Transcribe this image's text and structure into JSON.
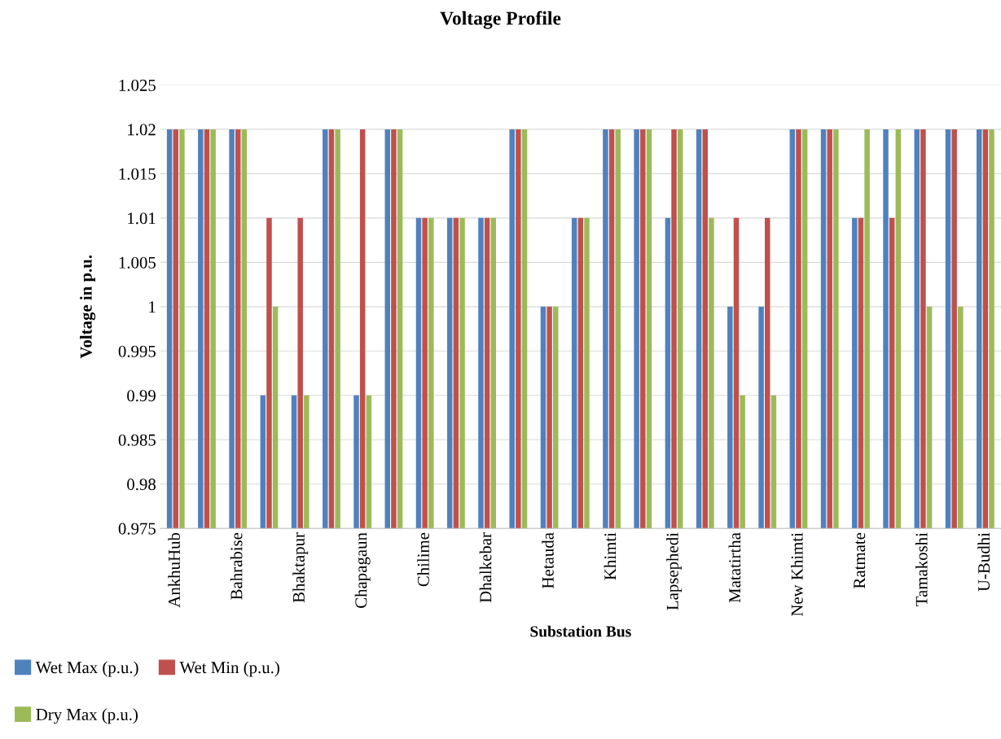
{
  "chart_data": {
    "type": "bar",
    "title": "Voltage Profile",
    "xlabel": "Substation Bus",
    "ylabel": "Voltage in p.u.",
    "categories": [
      "AnkhuHub",
      null,
      "Bahrabise",
      null,
      "Bhaktapur",
      null,
      "Chapagaun",
      null,
      "Chilime",
      null,
      "Dhalkebar",
      null,
      "Hetauda",
      null,
      "Khimti",
      null,
      "Lapsephedi",
      null,
      "Matatirtha",
      null,
      "New Khimti",
      null,
      "Ratmate",
      null,
      "Tamakoshi",
      null,
      "U-Budhi"
    ],
    "series": [
      {
        "name": "Wet Max (p.u.)",
        "color": "#4f81bd",
        "values": [
          1.02,
          1.02,
          1.02,
          0.99,
          0.99,
          1.02,
          0.99,
          1.02,
          1.01,
          1.01,
          1.01,
          1.02,
          1.0,
          1.01,
          1.02,
          1.02,
          1.01,
          1.02,
          1.0,
          1.0,
          1.02,
          1.02,
          1.01,
          1.02,
          1.02,
          1.02,
          1.02
        ]
      },
      {
        "name": "Wet Min (p.u.)",
        "color": "#c0504d",
        "values": [
          1.02,
          1.02,
          1.02,
          1.01,
          1.01,
          1.02,
          1.02,
          1.02,
          1.01,
          1.01,
          1.01,
          1.02,
          1.0,
          1.01,
          1.02,
          1.02,
          1.02,
          1.02,
          1.01,
          1.01,
          1.02,
          1.02,
          1.01,
          1.01,
          1.02,
          1.02,
          1.02
        ]
      },
      {
        "name": "Dry Max (p.u.)",
        "color": "#9bbb59",
        "values": [
          1.02,
          1.02,
          1.02,
          1.0,
          0.99,
          1.02,
          0.99,
          1.02,
          1.01,
          1.01,
          1.01,
          1.02,
          1.0,
          1.01,
          1.02,
          1.02,
          1.02,
          1.01,
          0.99,
          0.99,
          1.02,
          1.02,
          1.02,
          1.02,
          1.0,
          1.0,
          1.02
        ]
      }
    ],
    "ylim": [
      0.975,
      1.025
    ],
    "yticks": [
      0.975,
      0.98,
      0.985,
      0.99,
      0.995,
      {
        "value": 1.0,
        "label": "1"
      },
      1.005,
      1.01,
      1.015,
      1.02,
      1.025
    ],
    "grid": "y",
    "legend": "bottom left"
  }
}
